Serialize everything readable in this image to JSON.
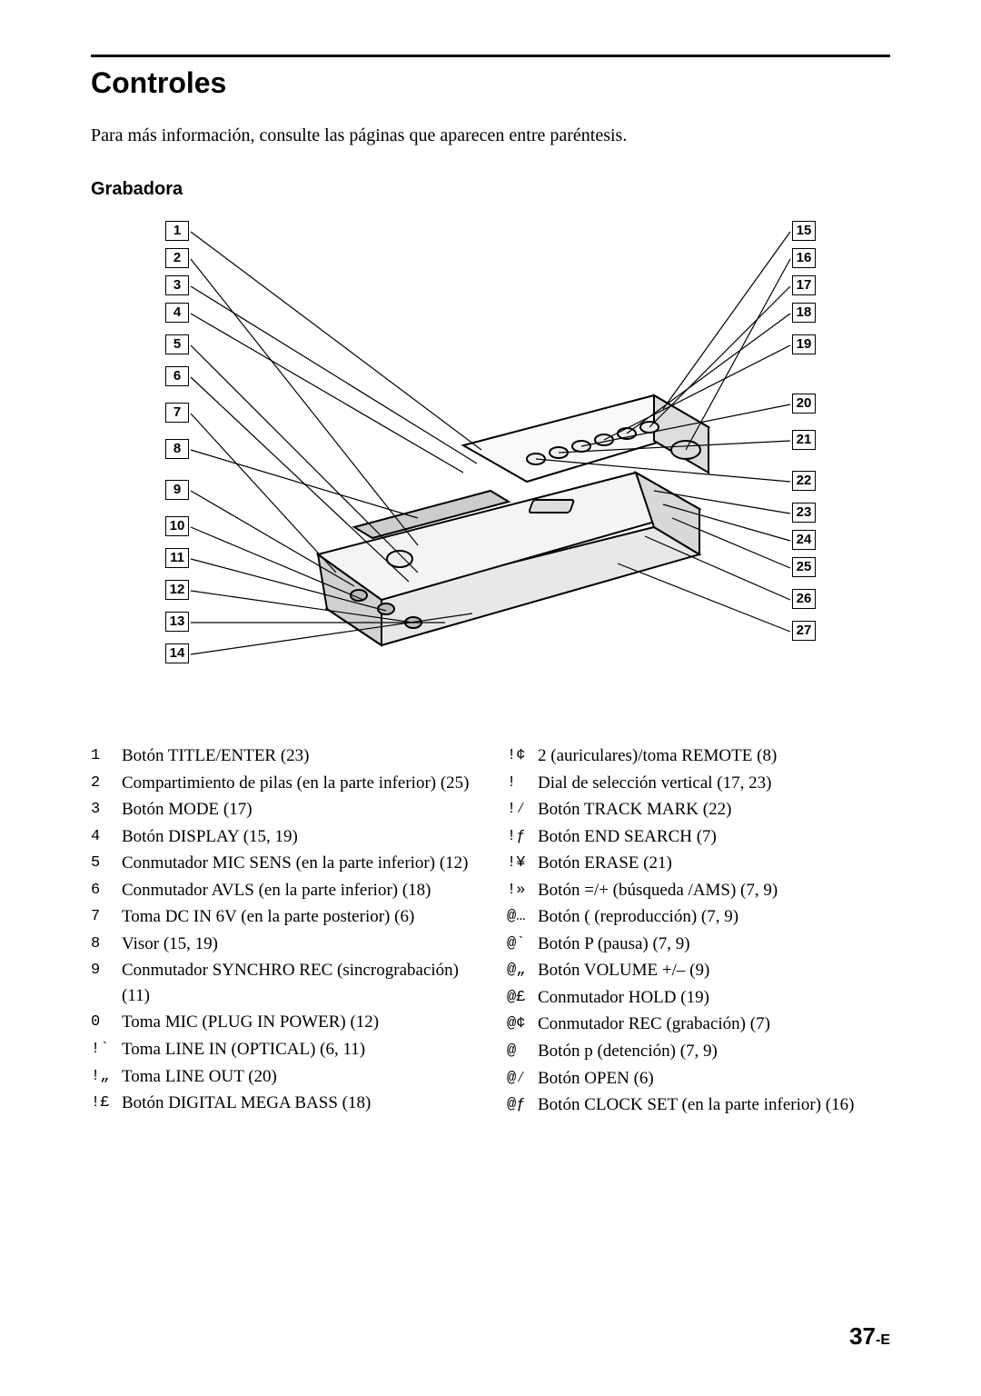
{
  "title": "Controles",
  "intro": "Para más información, consulte las páginas que aparecen entre paréntesis.",
  "subtitle": "Grabadora",
  "page_number": "37",
  "page_suffix": "-E",
  "diagram_labels_left": [
    "1",
    "2",
    "3",
    "4",
    "5",
    "6",
    "7",
    "8",
    "9",
    "10",
    "11",
    "12",
    "13",
    "14"
  ],
  "diagram_labels_right": [
    "15",
    "16",
    "17",
    "18",
    "19",
    "20",
    "21",
    "22",
    "23",
    "24",
    "25",
    "26",
    "27"
  ],
  "left_col": [
    {
      "ref": "1",
      "text": "Botón TITLE/ENTER (23)"
    },
    {
      "ref": "2",
      "text": "Compartimiento de pilas (en la parte inferior) (25)"
    },
    {
      "ref": "3",
      "text": "Botón MODE (17)"
    },
    {
      "ref": "4",
      "text": "Botón DISPLAY (15, 19)"
    },
    {
      "ref": "5",
      "text": "Conmutador MIC SENS (en la parte inferior) (12)"
    },
    {
      "ref": "6",
      "text": "Conmutador AVLS (en la parte inferior) (18)"
    },
    {
      "ref": "7",
      "text": "Toma DC IN 6V (en la parte posterior) (6)"
    },
    {
      "ref": "8",
      "text": "Visor (15, 19)"
    },
    {
      "ref": "9",
      "text": "Conmutador SYNCHRO REC (sincrograbación) (11)"
    },
    {
      "ref": "0",
      "text": "Toma MIC (PLUG IN POWER) (12)"
    },
    {
      "ref": "!`",
      "text": "Toma LINE IN (OPTICAL) (6, 11)"
    },
    {
      "ref": "!„",
      "text": "Toma LINE OUT (20)"
    },
    {
      "ref": "!£",
      "text": "Botón DIGITAL MEGA BASS (18)"
    }
  ],
  "right_col": [
    {
      "ref": "!¢",
      "text": "2 (auriculares)/toma REMOTE (8)"
    },
    {
      "ref": "!",
      "text": "Dial de selección vertical (17, 23)"
    },
    {
      "ref": "!⁄",
      "text": "Botón TRACK MARK (22)"
    },
    {
      "ref": "!ƒ",
      "text": "Botón END SEARCH (7)"
    },
    {
      "ref": "!¥",
      "text": "Botón ERASE (21)"
    },
    {
      "ref": "!»",
      "text": "Botón =/+        (búsqueda /AMS) (7, 9)"
    },
    {
      "ref": "@…",
      "text": "Botón (   (reproducción) (7, 9)"
    },
    {
      "ref": "@`",
      "text": "Botón P  (pausa) (7, 9)"
    },
    {
      "ref": "@„",
      "text": "Botón VOLUME +/– (9)"
    },
    {
      "ref": "@£",
      "text": "Conmutador HOLD (19)"
    },
    {
      "ref": "@¢",
      "text": "Conmutador REC (grabación) (7)"
    },
    {
      "ref": "@",
      "text": "Botón p  (detención) (7, 9)"
    },
    {
      "ref": "@⁄",
      "text": "Botón OPEN (6)"
    },
    {
      "ref": "@ƒ",
      "text": "Botón CLOCK SET (en la parte inferior) (16)"
    }
  ]
}
